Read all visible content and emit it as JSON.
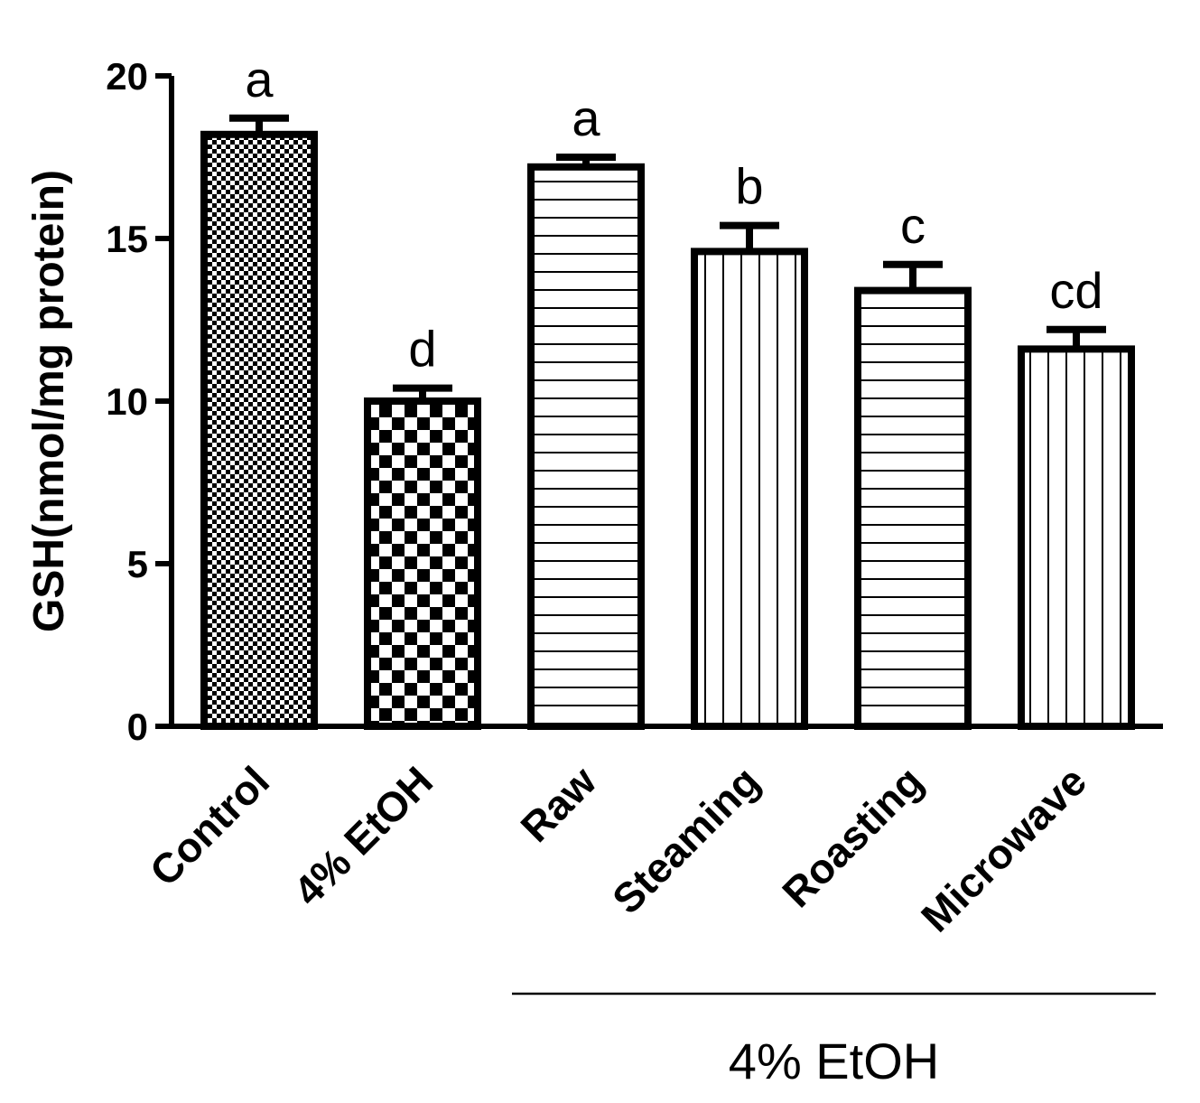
{
  "chart_data": {
    "type": "bar",
    "categories": [
      "Control",
      "4% EtOH",
      "Raw",
      "Steaming",
      "Roasting",
      "Microwave"
    ],
    "values": [
      18.2,
      10.0,
      17.2,
      14.6,
      13.4,
      11.6
    ],
    "errors": [
      0.5,
      0.4,
      0.3,
      0.8,
      0.8,
      0.6
    ],
    "significance": [
      "a",
      "d",
      "a",
      "b",
      "c",
      "cd"
    ],
    "patterns": [
      "fine-checker",
      "coarse-checker",
      "horizontal",
      "vertical",
      "horizontal",
      "vertical"
    ],
    "ylabel": "GSH(nmol/mg protein)",
    "xlabel": "",
    "ylim": [
      0,
      20
    ],
    "yticks": [
      0,
      5,
      10,
      15,
      20
    ],
    "group_bracket": {
      "label": "4% EtOH",
      "from_category": "Raw",
      "to_category": "Microwave"
    },
    "grid": false,
    "colors": {
      "bar_fill": "#ffffff",
      "ink": "#000000"
    }
  }
}
